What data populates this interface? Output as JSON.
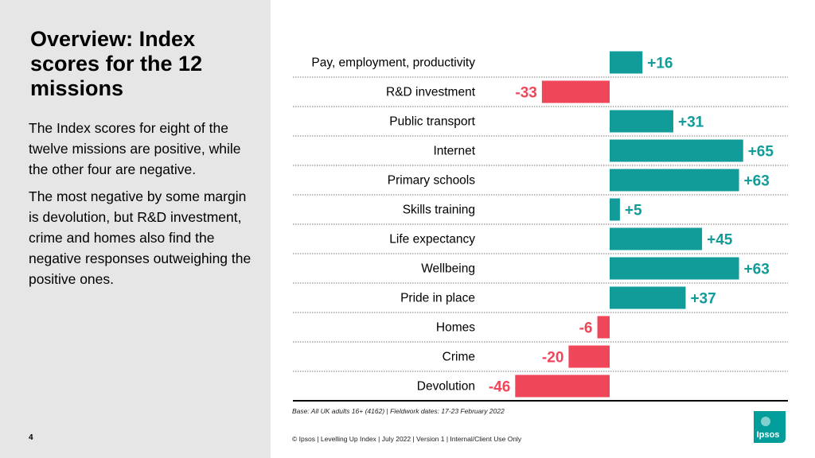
{
  "slide": {
    "title": "Overview: Index scores for the 12 missions",
    "paragraphs": [
      "The Index scores for eight of the twelve missions are positive, while the other four are negative.",
      "The most negative by some margin is devolution, but R&D investment, crime and homes also find the negative responses outweighing the positive ones."
    ],
    "page_number": "4",
    "base_note": "Base: All UK adults 16+ (4162) | Fieldwork dates: 17-23 February 2022",
    "footer": "© Ipsos | Levelling Up Index | July  2022 | Version 1 | Internal/Client Use Only",
    "logo_text": "Ipsos"
  },
  "colors": {
    "positive": "#119c9a",
    "negative": "#f0465a",
    "positive_label": "#119c9a",
    "negative_label": "#f0465a",
    "logo": "#009d9a"
  },
  "chart_data": {
    "type": "bar",
    "orientation": "horizontal",
    "title": "",
    "xlabel": "",
    "ylabel": "",
    "xlim": [
      -50,
      70
    ],
    "categories": [
      "Pay, employment, productivity",
      "R&D investment",
      "Public transport",
      "Internet",
      "Primary schools",
      "Skills training",
      "Life expectancy",
      "Wellbeing",
      "Pride in place",
      "Homes",
      "Crime",
      "Devolution"
    ],
    "values": [
      16,
      -33,
      31,
      65,
      63,
      5,
      45,
      63,
      37,
      -6,
      -20,
      -46
    ],
    "value_labels": [
      "+16",
      "-33",
      "+31",
      "+65",
      "+63",
      "+5",
      "+45",
      "+63",
      "+37",
      "-6",
      "-20",
      "-46"
    ]
  }
}
